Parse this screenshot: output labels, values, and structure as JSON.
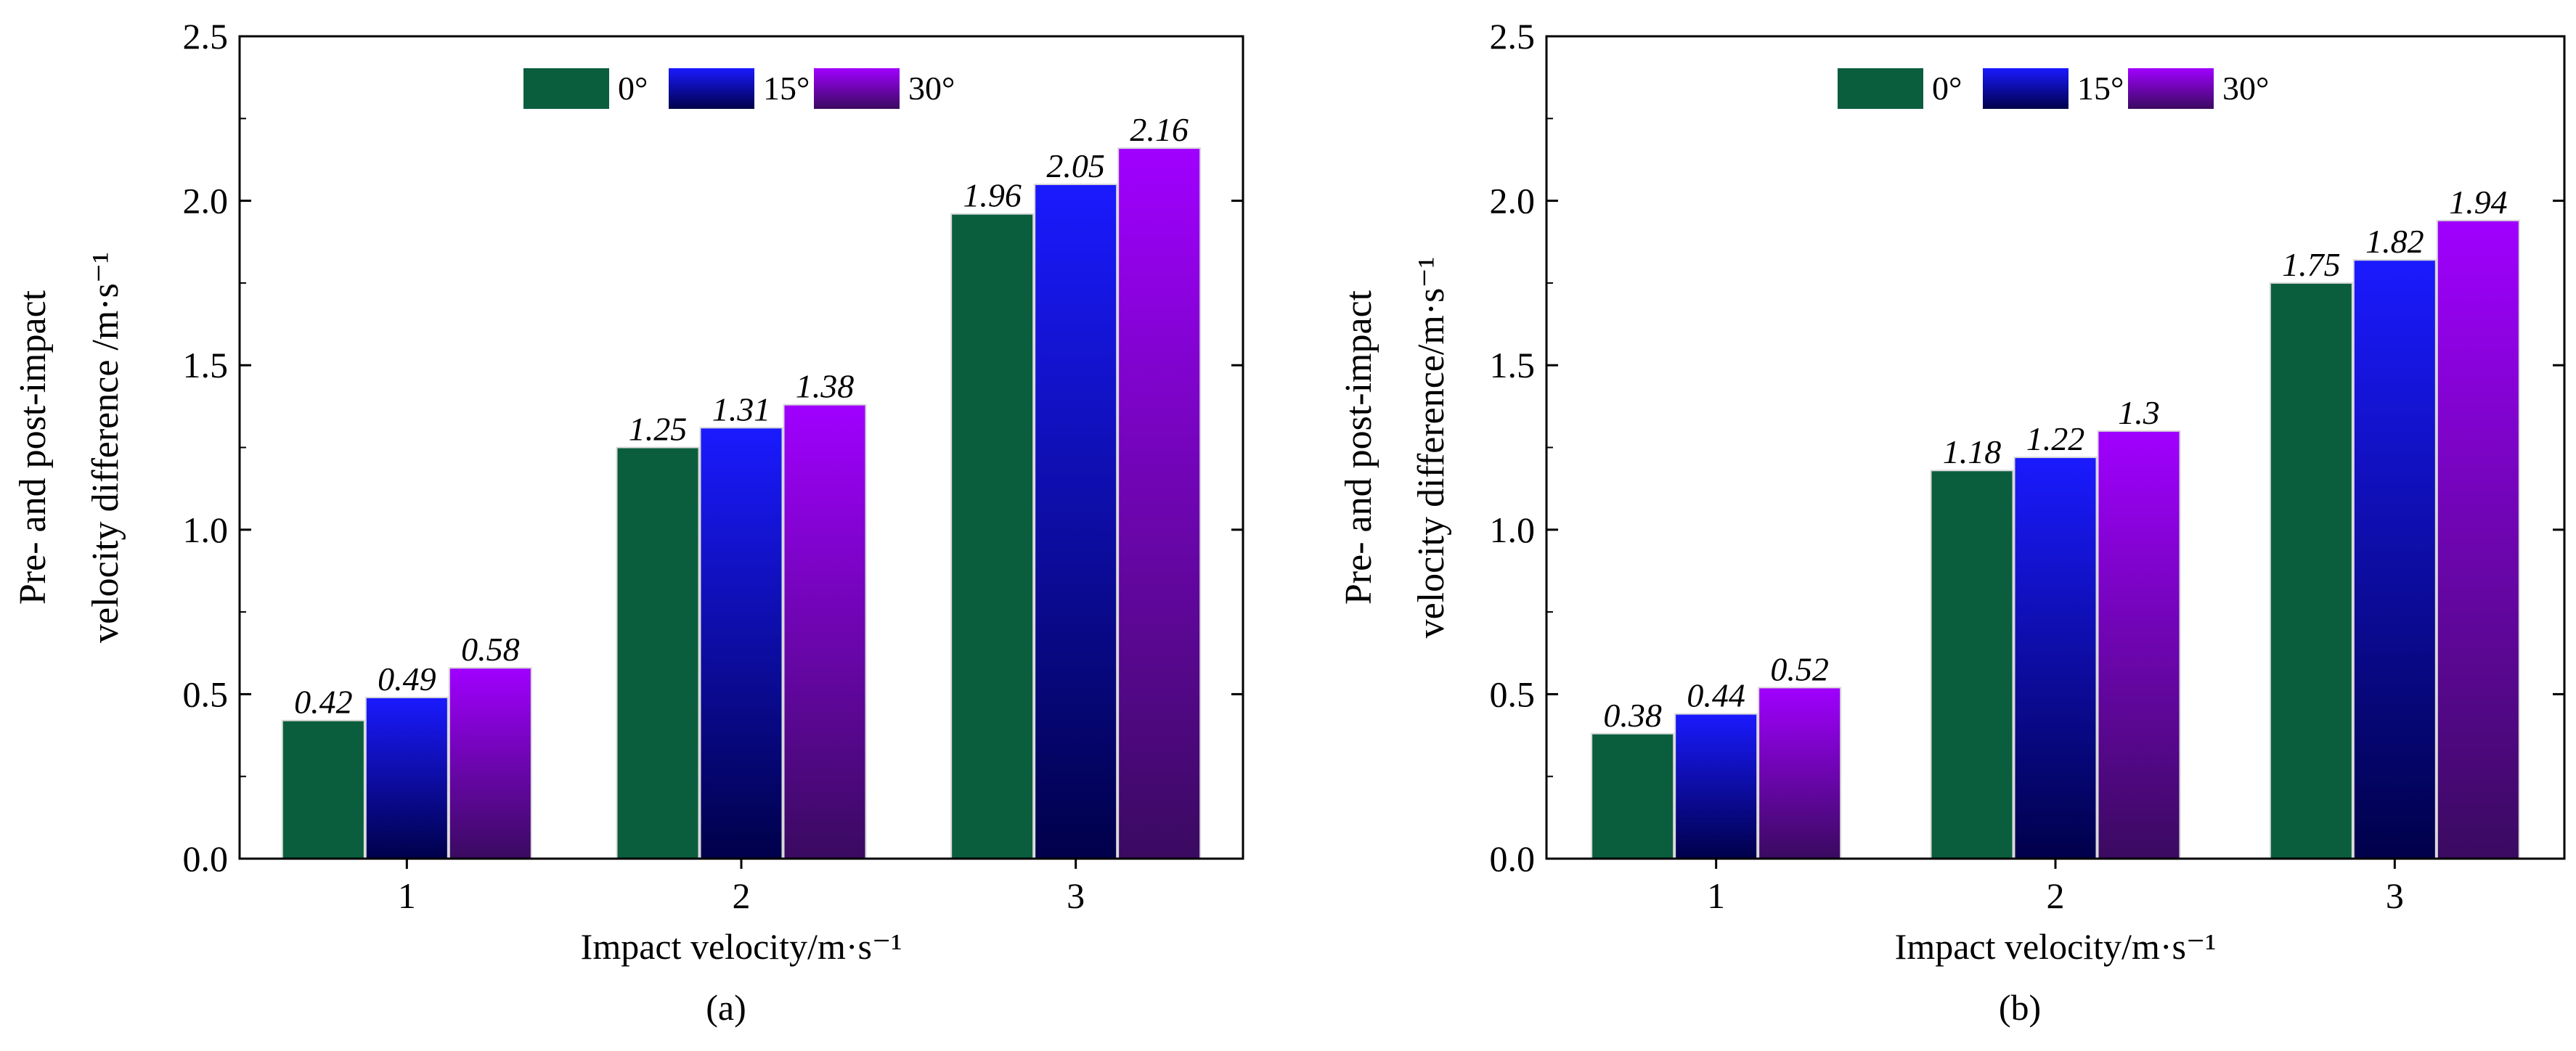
{
  "chart_data": [
    {
      "type": "bar",
      "panel_label": "(a)",
      "categories": [
        "1",
        "2",
        "3"
      ],
      "series": [
        {
          "name": "0°",
          "values": [
            0.42,
            1.25,
            1.96
          ],
          "labels": [
            "0.42",
            "1.25",
            "1.96"
          ]
        },
        {
          "name": "15°",
          "values": [
            0.49,
            1.31,
            2.05
          ],
          "labels": [
            "0.49",
            "1.31",
            "2.05"
          ]
        },
        {
          "name": "30°",
          "values": [
            0.58,
            1.38,
            2.16
          ],
          "labels": [
            "0.58",
            "1.38",
            "2.16"
          ]
        }
      ],
      "xlabel": "Impact velocity/m·s⁻¹",
      "ylabel_lines": [
        "Pre- and post-impact",
        "velocity difference /m·s⁻¹"
      ],
      "ylim": [
        0,
        2.5
      ],
      "yticks": [
        "0.0",
        "0.5",
        "1.0",
        "1.5",
        "2.0",
        "2.5"
      ],
      "legend_position": "top-center"
    },
    {
      "type": "bar",
      "panel_label": "(b)",
      "categories": [
        "1",
        "2",
        "3"
      ],
      "series": [
        {
          "name": "0°",
          "values": [
            0.38,
            1.18,
            1.75
          ],
          "labels": [
            "0.38",
            "1.18",
            "1.75"
          ]
        },
        {
          "name": "15°",
          "values": [
            0.44,
            1.22,
            1.82
          ],
          "labels": [
            "0.44",
            "1.22",
            "1.82"
          ]
        },
        {
          "name": "30°",
          "values": [
            0.52,
            1.3,
            1.94
          ],
          "labels": [
            "0.52",
            "1.3",
            "1.94"
          ]
        }
      ],
      "xlabel": "Impact velocity/m·s⁻¹",
      "ylabel_lines": [
        "Pre- and post-impact",
        "velocity difference/m·s⁻¹"
      ],
      "ylim": [
        0,
        2.5
      ],
      "yticks": [
        "0.0",
        "0.5",
        "1.0",
        "1.5",
        "2.0",
        "2.5"
      ],
      "legend_position": "top-center"
    }
  ],
  "colors": {
    "series_0": "#0a5e3e",
    "series_1_top": "#1a1aff",
    "series_1_bottom": "#00004a",
    "series_2_top": "#a000ff",
    "series_2_bottom": "#3a0a60"
  }
}
